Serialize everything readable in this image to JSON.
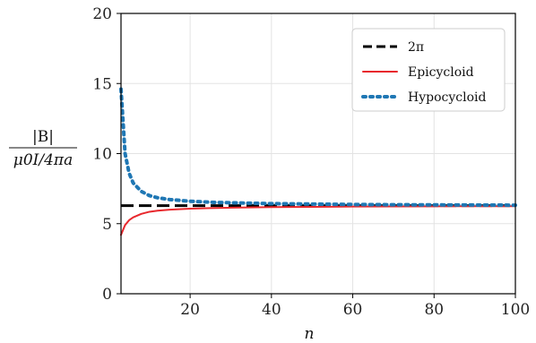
{
  "chart_data": {
    "type": "line",
    "title": "",
    "xlabel": "n",
    "ylabel_numerator": "|B|",
    "ylabel_denominator": "μ0I/4πa",
    "xlim": [
      3,
      100
    ],
    "ylim": [
      0,
      20
    ],
    "xticks": [
      20,
      40,
      60,
      80,
      100
    ],
    "yticks": [
      0,
      5,
      10,
      15,
      20
    ],
    "grid": true,
    "legend_position": "upper right",
    "series": [
      {
        "name": "2π",
        "style": "dashed",
        "color": "#000000",
        "x": [
          3,
          100
        ],
        "y": [
          6.283,
          6.283
        ]
      },
      {
        "name": "Epicycloid",
        "style": "solid",
        "color": "#e8282d",
        "x": [
          3,
          4,
          5,
          6,
          8,
          10,
          12,
          15,
          20,
          25,
          30,
          40,
          50,
          60,
          70,
          80,
          90,
          100
        ],
        "y": [
          4.2,
          4.9,
          5.25,
          5.45,
          5.7,
          5.85,
          5.93,
          6.0,
          6.07,
          6.11,
          6.14,
          6.18,
          6.2,
          6.22,
          6.23,
          6.24,
          6.245,
          6.25
        ]
      },
      {
        "name": "Hypocycloid",
        "style": "dotted",
        "color": "#1f77b4",
        "x": [
          3,
          4,
          5,
          6,
          8,
          10,
          12,
          15,
          20,
          25,
          30,
          40,
          50,
          60,
          70,
          80,
          90,
          100
        ],
        "y": [
          14.6,
          10.0,
          8.6,
          7.9,
          7.3,
          7.0,
          6.85,
          6.72,
          6.6,
          6.53,
          6.49,
          6.43,
          6.4,
          6.37,
          6.35,
          6.34,
          6.33,
          6.32
        ]
      }
    ]
  }
}
